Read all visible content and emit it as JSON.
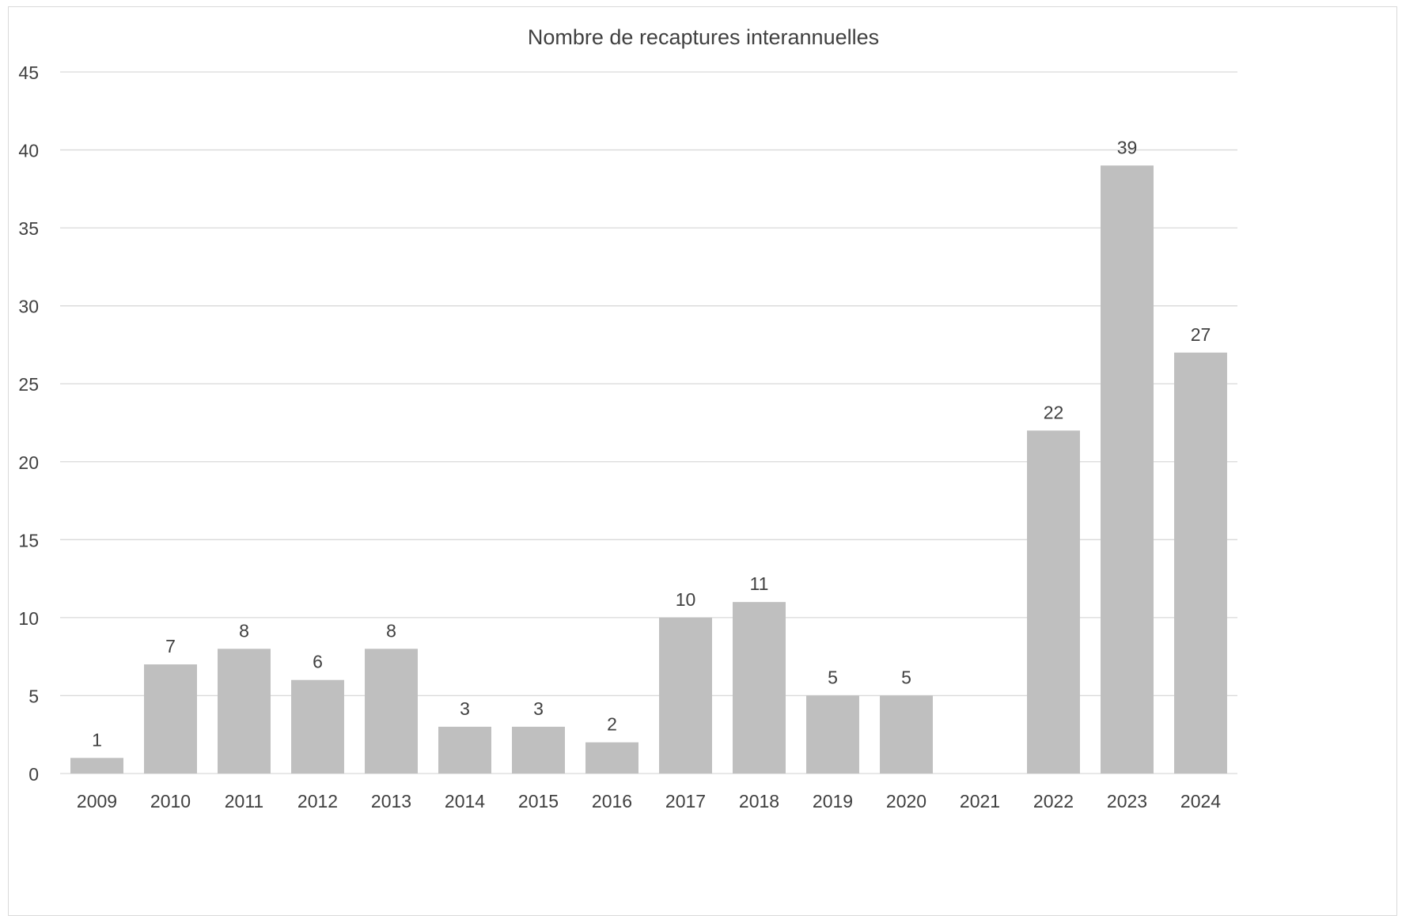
{
  "chart_data": {
    "type": "bar",
    "title": "Nombre de recaptures interannuelles",
    "xlabel": "",
    "ylabel": "",
    "categories": [
      "2009",
      "2010",
      "2011",
      "2012",
      "2013",
      "2014",
      "2015",
      "2016",
      "2017",
      "2018",
      "2019",
      "2020",
      "2021",
      "2022",
      "2023",
      "2024"
    ],
    "values": [
      1,
      7,
      8,
      6,
      8,
      3,
      3,
      2,
      10,
      11,
      5,
      5,
      null,
      22,
      39,
      27
    ],
    "data_labels": [
      "1",
      "7",
      "8",
      "6",
      "8",
      "3",
      "3",
      "2",
      "10",
      "11",
      "5",
      "5",
      "",
      "22",
      "39",
      "27"
    ],
    "ylim": [
      0,
      45
    ],
    "yticks": [
      0,
      5,
      10,
      15,
      20,
      25,
      30,
      35,
      40,
      45
    ],
    "grid": true,
    "legend": "none",
    "colors": {
      "bar": "#bfbfbf",
      "grid": "#d9d9d9",
      "text": "#404040"
    }
  }
}
